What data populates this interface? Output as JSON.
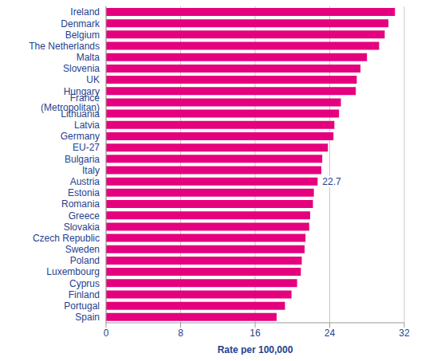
{
  "chart_data": {
    "type": "bar",
    "orientation": "horizontal",
    "x_label": "Rate per 100,000",
    "categories": [
      "Ireland",
      "Denmark",
      "Belgium",
      "The Netherlands",
      "Malta",
      "Slovenia",
      "UK",
      "Hungary",
      "France (Metropolitan)",
      "Lithuania",
      "Latvia",
      "Germany",
      "EU-27",
      "Bulgaria",
      "Italy",
      "Austria",
      "Estonia",
      "Romania",
      "Greece",
      "Slovakia",
      "Czech Republic",
      "Sweden",
      "Poland",
      "Luxembourg",
      "Cyprus",
      "Finland",
      "Portugal",
      "Spain"
    ],
    "values": [
      31.0,
      30.3,
      29.9,
      29.3,
      28.0,
      27.3,
      26.9,
      26.8,
      25.2,
      25.0,
      24.5,
      24.4,
      23.8,
      23.2,
      23.1,
      22.7,
      22.3,
      22.2,
      21.9,
      21.8,
      21.4,
      21.3,
      21.0,
      20.9,
      20.5,
      19.9,
      19.2,
      18.3
    ],
    "value_labels": [
      null,
      null,
      null,
      null,
      null,
      null,
      null,
      null,
      null,
      null,
      null,
      null,
      null,
      null,
      null,
      "22.7",
      null,
      null,
      null,
      null,
      null,
      null,
      null,
      null,
      null,
      null,
      null,
      null
    ],
    "color": "#e5007d",
    "xlim": [
      0,
      32
    ],
    "xticks": [
      0,
      8,
      16,
      24,
      32
    ],
    "grid": true
  }
}
